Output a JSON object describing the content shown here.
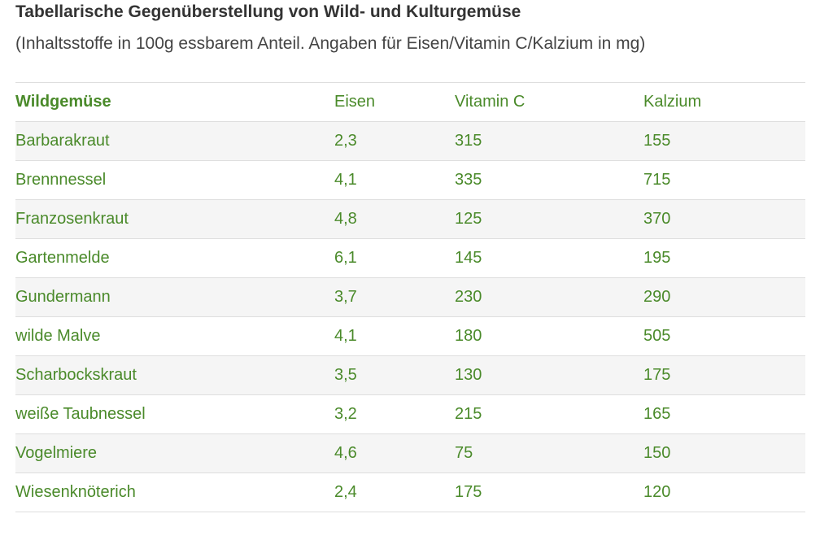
{
  "title": "Tabellarische Gegenüberstellung von Wild- und Kulturgemüse",
  "subtitle": "(Inhaltsstoffe in 100g essbarem Anteil. Angaben für Eisen/Vitamin C/Kalzium in mg)",
  "table": {
    "headers": [
      "Wildgemüse",
      "Eisen",
      "Vitamin C",
      "Kalzium"
    ],
    "rows": [
      [
        "Barbarakraut",
        "2,3",
        "315",
        "155"
      ],
      [
        "Brennnessel",
        "4,1",
        "335",
        "715"
      ],
      [
        "Franzosenkraut",
        "4,8",
        "125",
        "370"
      ],
      [
        "Gartenmelde",
        "6,1",
        "145",
        "195"
      ],
      [
        "Gundermann",
        "3,7",
        "230",
        "290"
      ],
      [
        "wilde Malve",
        "4,1",
        "180",
        "505"
      ],
      [
        "Scharbockskraut",
        "3,5",
        "130",
        "175"
      ],
      [
        "weiße Taubnessel",
        "3,2",
        "215",
        "165"
      ],
      [
        "Vogelmiere",
        "4,6",
        "75",
        "150"
      ],
      [
        "Wiesenknöterich",
        "2,4",
        "175",
        "120"
      ]
    ]
  },
  "colors": {
    "text_green": "#4a8a2a",
    "row_alt_bg": "#f5f5f5",
    "border": "#dedede",
    "title": "#333333"
  }
}
